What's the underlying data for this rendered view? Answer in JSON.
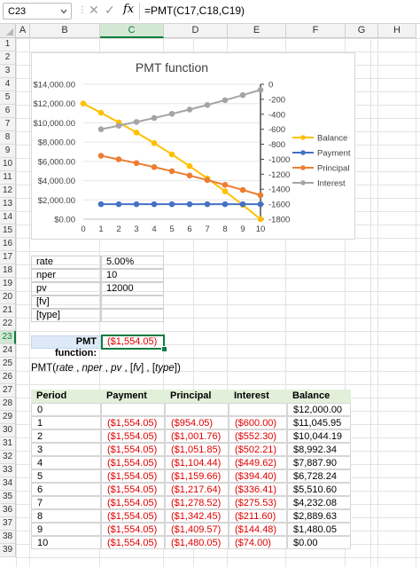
{
  "formula_bar": {
    "name_box": "C23",
    "fx_label": "fx",
    "formula": "=PMT(C17,C18,C19)"
  },
  "columns": [
    "A",
    "B",
    "C",
    "D",
    "E",
    "F",
    "G",
    "H"
  ],
  "selected_column": "C",
  "rows": [
    "1",
    "2",
    "3",
    "4",
    "5",
    "6",
    "7",
    "8",
    "9",
    "10",
    "11",
    "12",
    "13",
    "14",
    "15",
    "16",
    "17",
    "18",
    "19",
    "20",
    "21",
    "22",
    "23",
    "24",
    "25",
    "26",
    "27",
    "28",
    "29",
    "30",
    "31",
    "32",
    "33",
    "34",
    "35",
    "36",
    "37",
    "38",
    "39"
  ],
  "selected_row": "23",
  "chart_data": {
    "type": "line",
    "title": "PMT function",
    "x": [
      0,
      1,
      2,
      3,
      4,
      5,
      6,
      7,
      8,
      9,
      10
    ],
    "x_ticks": [
      "0",
      "1",
      "2",
      "3",
      "4",
      "5",
      "6",
      "7",
      "8",
      "9",
      "10"
    ],
    "y_left_ticks": [
      "$14,000.00",
      "$12,000.00",
      "$10,000.00",
      "$8,000.00",
      "$6,000.00",
      "$4,000.00",
      "$2,000.00",
      "$0.00"
    ],
    "y_left_range": [
      0,
      14000
    ],
    "y_right_ticks": [
      "0",
      "-200",
      "-400",
      "-600",
      "-800",
      "-1000",
      "-1200",
      "-1400",
      "-1600",
      "-1800"
    ],
    "y_right_range": [
      -1800,
      0
    ],
    "legend_position": "right",
    "series": [
      {
        "name": "Balance",
        "axis": "left",
        "color": "#ffc000",
        "x": [
          0,
          1,
          2,
          3,
          4,
          5,
          6,
          7,
          8,
          9,
          10
        ],
        "values": [
          12000,
          11045.95,
          10044.19,
          8992.34,
          7887.9,
          6728.24,
          5510.6,
          4232.08,
          2889.63,
          1480.05,
          0
        ]
      },
      {
        "name": "Payment",
        "axis": "left",
        "color": "#4472c4",
        "x": [
          1,
          2,
          3,
          4,
          5,
          6,
          7,
          8,
          9,
          10
        ],
        "values": [
          1554.05,
          1554.05,
          1554.05,
          1554.05,
          1554.05,
          1554.05,
          1554.05,
          1554.05,
          1554.05,
          1554.05
        ]
      },
      {
        "name": "Principal",
        "axis": "right",
        "color": "#ed7d31",
        "x": [
          1,
          2,
          3,
          4,
          5,
          6,
          7,
          8,
          9,
          10
        ],
        "values": [
          -954.05,
          -1001.76,
          -1051.85,
          -1104.44,
          -1159.66,
          -1217.64,
          -1278.52,
          -1342.45,
          -1409.57,
          -1480.05
        ]
      },
      {
        "name": "Interest",
        "axis": "right",
        "color": "#a5a5a5",
        "x": [
          1,
          2,
          3,
          4,
          5,
          6,
          7,
          8,
          9,
          10
        ],
        "values": [
          -600,
          -552.3,
          -502.21,
          -449.62,
          -394.4,
          -336.41,
          -275.53,
          -211.6,
          -144.48,
          -74
        ]
      }
    ]
  },
  "inputs": [
    {
      "label": "rate",
      "value": "5.00%"
    },
    {
      "label": "nper",
      "value": "10"
    },
    {
      "label": "pv",
      "value": "12000"
    },
    {
      "label": "[fv]",
      "value": ""
    },
    {
      "label": "[type]",
      "value": ""
    }
  ],
  "pmt": {
    "label": "PMT function:",
    "value": "($1,554.05)"
  },
  "syntax": {
    "fn": "PMT(",
    "rate": "rate",
    "sep1": " , ",
    "nper": "nper",
    "sep2": " , ",
    "pv": "pv",
    "sep3": " , [",
    "fv": "fv",
    "sep4": "] , [",
    "type": "type",
    "end": "])"
  },
  "amortization": {
    "headers": [
      "Period",
      "Payment",
      "Principal",
      "Interest",
      "Balance"
    ],
    "rows": [
      [
        "0",
        "",
        "",
        "",
        "$12,000.00"
      ],
      [
        "1",
        "($1,554.05)",
        "($954.05)",
        "($600.00)",
        "$11,045.95"
      ],
      [
        "2",
        "($1,554.05)",
        "($1,001.76)",
        "($552.30)",
        "$10,044.19"
      ],
      [
        "3",
        "($1,554.05)",
        "($1,051.85)",
        "($502.21)",
        "$8,992.34"
      ],
      [
        "4",
        "($1,554.05)",
        "($1,104.44)",
        "($449.62)",
        "$7,887.90"
      ],
      [
        "5",
        "($1,554.05)",
        "($1,159.66)",
        "($394.40)",
        "$6,728.24"
      ],
      [
        "6",
        "($1,554.05)",
        "($1,217.64)",
        "($336.41)",
        "$5,510.60"
      ],
      [
        "7",
        "($1,554.05)",
        "($1,278.52)",
        "($275.53)",
        "$4,232.08"
      ],
      [
        "8",
        "($1,554.05)",
        "($1,342.45)",
        "($211.60)",
        "$2,889.63"
      ],
      [
        "9",
        "($1,554.05)",
        "($1,409.57)",
        "($144.48)",
        "$1,480.05"
      ],
      [
        "10",
        "($1,554.05)",
        "($1,480.05)",
        "($74.00)",
        "$0.00"
      ]
    ]
  }
}
